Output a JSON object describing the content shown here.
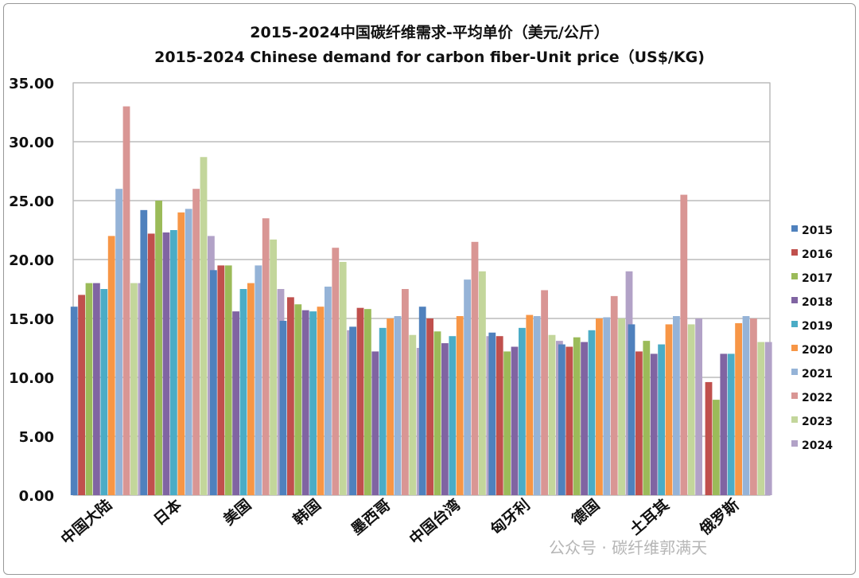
{
  "chart_data": {
    "type": "bar",
    "title": "2015-2024中国碳纤维需求-平均单价（美元/公斤）",
    "subtitle": "2015-2024 Chinese demand for carbon fiber-Unit price（US$/KG)",
    "xlabel": "",
    "ylabel": "",
    "ylim": [
      0,
      35
    ],
    "yticks": [
      "0.00",
      "5.00",
      "10.00",
      "15.00",
      "20.00",
      "25.00",
      "30.00",
      "35.00"
    ],
    "grid": true,
    "legend_position": "right",
    "categories": [
      "中国大陆",
      "日本",
      "美国",
      "韩国",
      "墨西哥",
      "中国台湾",
      "匈牙利",
      "德国",
      "土耳其",
      "俄罗斯"
    ],
    "series": [
      {
        "name": "2015",
        "color": "#4F81BD",
        "values": [
          16.0,
          24.2,
          19.1,
          14.8,
          14.3,
          16.0,
          13.8,
          12.8,
          14.5,
          null
        ]
      },
      {
        "name": "2016",
        "color": "#C0504D",
        "values": [
          17.0,
          22.2,
          19.5,
          16.8,
          15.9,
          15.0,
          13.5,
          12.6,
          12.2,
          9.6
        ]
      },
      {
        "name": "2017",
        "color": "#9BBB59",
        "values": [
          18.0,
          25.0,
          19.5,
          16.2,
          15.8,
          13.9,
          12.2,
          13.4,
          13.1,
          8.1
        ]
      },
      {
        "name": "2018",
        "color": "#8064A2",
        "values": [
          18.0,
          22.3,
          15.6,
          15.7,
          12.2,
          12.9,
          12.6,
          13.0,
          12.0,
          12.0
        ]
      },
      {
        "name": "2019",
        "color": "#4BACC6",
        "values": [
          17.5,
          22.5,
          17.5,
          15.6,
          14.2,
          13.5,
          14.2,
          14.0,
          12.8,
          12.0
        ]
      },
      {
        "name": "2020",
        "color": "#F79646",
        "values": [
          22.0,
          24.0,
          18.0,
          16.0,
          15.0,
          15.2,
          15.3,
          15.0,
          14.5,
          14.6
        ]
      },
      {
        "name": "2021",
        "color": "#95B3D7",
        "values": [
          26.0,
          24.3,
          19.5,
          17.7,
          15.2,
          18.3,
          15.2,
          15.1,
          15.2,
          15.2
        ]
      },
      {
        "name": "2022",
        "color": "#D99694",
        "values": [
          33.0,
          26.0,
          23.5,
          21.0,
          17.5,
          21.5,
          17.4,
          16.9,
          25.5,
          15.0
        ]
      },
      {
        "name": "2023",
        "color": "#C3D69B",
        "values": [
          18.0,
          28.7,
          21.7,
          19.8,
          13.6,
          19.0,
          13.6,
          15.0,
          14.5,
          13.0
        ]
      },
      {
        "name": "2024",
        "color": "#B2A2C7",
        "values": [
          18.0,
          22.0,
          17.5,
          14.0,
          12.5,
          13.5,
          13.1,
          19.0,
          15.0,
          13.0
        ]
      }
    ]
  },
  "watermark": "公众号 · 碳纤维郭满天"
}
